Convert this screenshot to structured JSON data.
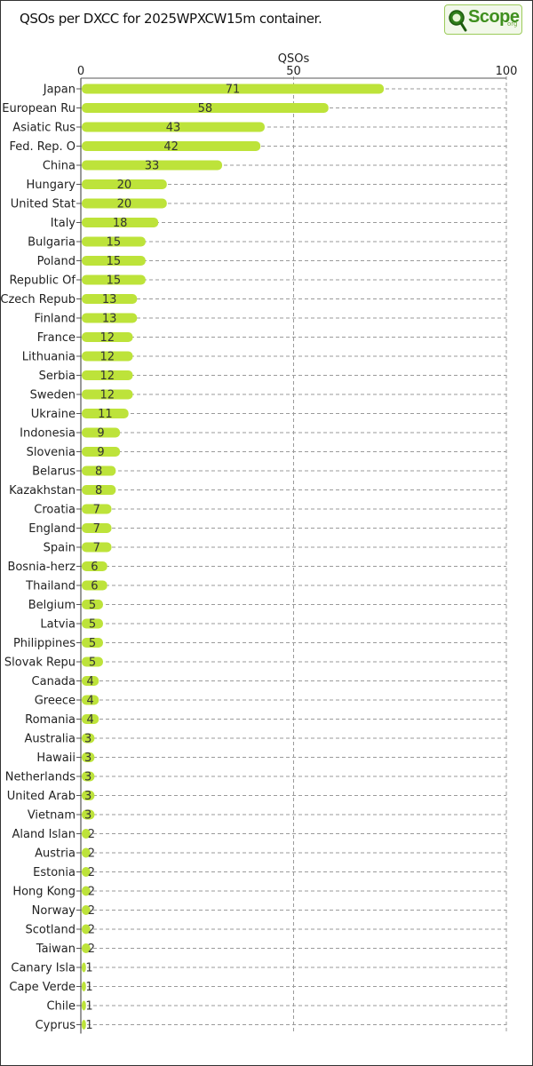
{
  "title": "QSOs per DXCC for 2025WPXCW15m container.",
  "logo": {
    "text": "Scope",
    "suffix": "org"
  },
  "colors": {
    "bar": "#bde33a",
    "grid": "#9a9a9a",
    "axis": "#555555"
  },
  "chart_data": {
    "type": "bar",
    "orientation": "horizontal",
    "title": "QSOs per DXCC for 2025WPXCW15m container.",
    "xlabel": "QSOs",
    "xlim": [
      0,
      100
    ],
    "xticks": [
      0,
      50,
      100
    ],
    "grid": true,
    "categories": [
      "Japan",
      "European Ru",
      "Asiatic Rus",
      "Fed. Rep. O",
      "China",
      "Hungary",
      "United Stat",
      "Italy",
      "Bulgaria",
      "Poland",
      "Republic Of",
      "Czech Repub",
      "Finland",
      "France",
      "Lithuania",
      "Serbia",
      "Sweden",
      "Ukraine",
      "Indonesia",
      "Slovenia",
      "Belarus",
      "Kazakhstan",
      "Croatia",
      "England",
      "Spain",
      "Bosnia-herz",
      "Thailand",
      "Belgium",
      "Latvia",
      "Philippines",
      "Slovak Repu",
      "Canada",
      "Greece",
      "Romania",
      "Australia",
      "Hawaii",
      "Netherlands",
      "United Arab",
      "Vietnam",
      "Aland Islan",
      "Austria",
      "Estonia",
      "Hong Kong",
      "Norway",
      "Scotland",
      "Taiwan",
      "Canary Isla",
      "Cape Verde",
      "Chile",
      "Cyprus"
    ],
    "values": [
      71,
      58,
      43,
      42,
      33,
      20,
      20,
      18,
      15,
      15,
      15,
      13,
      13,
      12,
      12,
      12,
      12,
      11,
      9,
      9,
      8,
      8,
      7,
      7,
      7,
      6,
      6,
      5,
      5,
      5,
      5,
      4,
      4,
      4,
      3,
      3,
      3,
      3,
      3,
      2,
      2,
      2,
      2,
      2,
      2,
      2,
      1,
      1,
      1,
      1
    ]
  }
}
